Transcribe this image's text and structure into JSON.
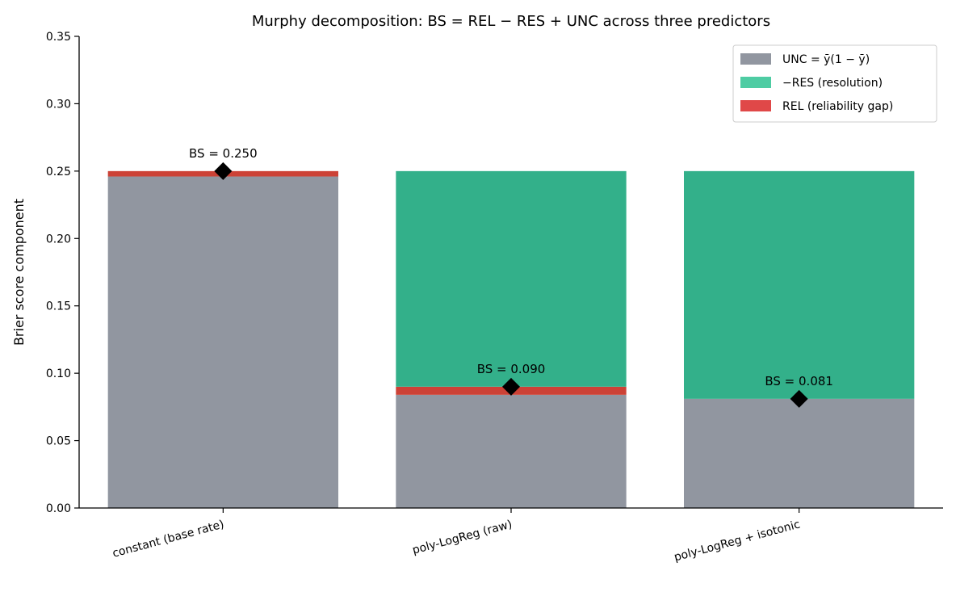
{
  "chart_data": {
    "type": "bar",
    "stacked": true,
    "title": "Murphy decomposition: BS = REL − RES + UNC across three predictors",
    "ylabel": "Brier score component",
    "xlabel": "",
    "ylim": [
      0,
      0.35
    ],
    "yticks": [
      0.0,
      0.05,
      0.1,
      0.15,
      0.2,
      0.25,
      0.3,
      0.35
    ],
    "ytick_labels": [
      "0.00",
      "0.05",
      "0.10",
      "0.15",
      "0.20",
      "0.25",
      "0.30",
      "0.35"
    ],
    "categories": [
      "constant (base rate)",
      "poly-LogReg (raw)",
      "poly-LogReg + isotonic"
    ],
    "unc": 0.25,
    "res": [
      0.004,
      0.166,
      0.169
    ],
    "rel": [
      0.004,
      0.006,
      0.0
    ],
    "bs_values": [
      0.25,
      0.09,
      0.081
    ],
    "bs_labels": [
      "BS = 0.250",
      "BS = 0.090",
      "BS = 0.081"
    ],
    "legend": {
      "placement": "top-right",
      "entries": [
        {
          "key": "unc",
          "label": "UNC = ȳ(1 − ȳ)",
          "color": "#9196a0"
        },
        {
          "key": "res",
          "label": "−RES (resolution)",
          "color": "#4ecca3"
        },
        {
          "key": "rel",
          "label": "REL (reliability gap)",
          "color": "#e04848"
        }
      ]
    },
    "colors": {
      "unc": "#9196a0",
      "res_fill": "#33b08a",
      "rel_fill": "#cc4236",
      "marker": "#000000"
    }
  }
}
